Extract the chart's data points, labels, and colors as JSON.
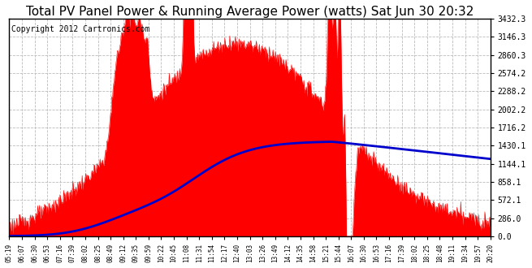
{
  "title": "Total PV Panel Power & Running Average Power (watts) Sat Jun 30 20:32",
  "copyright": "Copyright 2012 Cartronics.com",
  "yticks": [
    0.0,
    286.0,
    572.1,
    858.1,
    1144.1,
    1430.1,
    1716.2,
    2002.2,
    2288.2,
    2574.2,
    2860.3,
    3146.3,
    3432.3
  ],
  "ymax": 3432.3,
  "bg_color": "#ffffff",
  "plot_bg_color": "#ffffff",
  "fill_color": "#ff0000",
  "avg_line_color": "#0000cc",
  "grid_color": "#bbbbbb",
  "title_fontsize": 11,
  "copyright_fontsize": 7,
  "xtick_labels": [
    "05:19",
    "06:07",
    "06:30",
    "06:53",
    "07:16",
    "07:39",
    "08:02",
    "08:25",
    "08:49",
    "09:12",
    "09:35",
    "09:59",
    "10:22",
    "10:45",
    "11:08",
    "11:31",
    "11:54",
    "12:17",
    "12:40",
    "13:03",
    "13:26",
    "13:49",
    "14:12",
    "14:35",
    "14:58",
    "15:21",
    "15:44",
    "16:07",
    "16:30",
    "16:53",
    "17:16",
    "17:39",
    "18:02",
    "18:25",
    "18:48",
    "19:11",
    "19:34",
    "19:57",
    "20:20"
  ],
  "n_ticks": 39
}
